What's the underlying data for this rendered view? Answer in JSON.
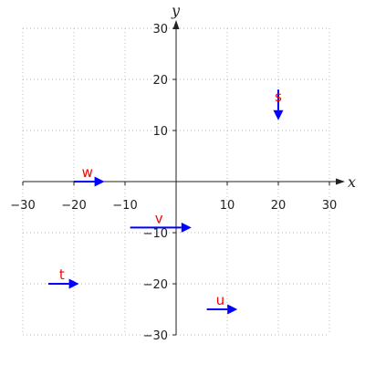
{
  "chart_data": {
    "type": "vector-field",
    "title": "",
    "xlabel": "x",
    "ylabel": "y",
    "xlim": [
      -30,
      30
    ],
    "ylim": [
      -30,
      30
    ],
    "xticks": [
      -30,
      -20,
      -10,
      10,
      20,
      30
    ],
    "yticks": [
      -30,
      -20,
      -10,
      10,
      20,
      30
    ],
    "grid": true,
    "vector_color": "#0000ff",
    "label_color": "#ff0000",
    "vectors": [
      {
        "name": "w",
        "x": -20,
        "y": 0,
        "dx": 6,
        "dy": 0
      },
      {
        "name": "s",
        "x": 20,
        "y": 18,
        "dx": 0,
        "dy": -6
      },
      {
        "name": "v",
        "x": -9,
        "y": -9,
        "dx": 12,
        "dy": 0
      },
      {
        "name": "t",
        "x": -25,
        "y": -20,
        "dx": 6,
        "dy": 0
      },
      {
        "name": "u",
        "x": 6,
        "y": -25,
        "dx": 6,
        "dy": 0
      }
    ]
  }
}
